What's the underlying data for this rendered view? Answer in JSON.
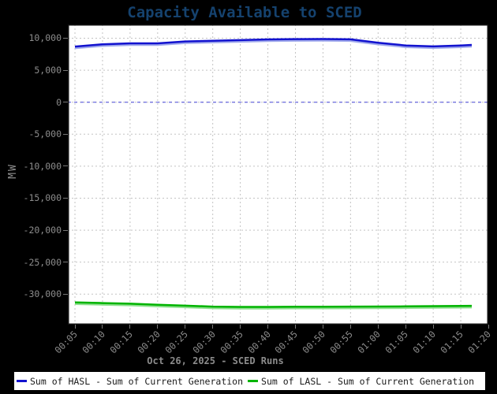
{
  "page": {
    "background": "#000000"
  },
  "title": {
    "text": "Capacity Available to SCED",
    "color": "#15426e"
  },
  "axes": {
    "ylabel": "MW",
    "xlabel": "Oct 26, 2025 - SCED Runs",
    "label_color": "#8c8c8c"
  },
  "legend": {
    "items": [
      {
        "label": "Sum of HASL - Sum of Current Generation",
        "color": "#1212cf"
      },
      {
        "label": "Sum of LASL - Sum of Current Generation",
        "color": "#00b400"
      }
    ]
  },
  "chart_data": {
    "type": "line",
    "title": "Capacity Available to SCED",
    "xlabel": "Oct 26, 2025 - SCED Runs",
    "ylabel": "MW",
    "grid": true,
    "legend_position": "bottom",
    "x": [
      "00:05",
      "00:10",
      "00:15",
      "00:20",
      "00:25",
      "00:30",
      "00:35",
      "00:40",
      "00:45",
      "00:50",
      "00:55",
      "01:00",
      "01:05",
      "01:10",
      "01:15",
      "01:17"
    ],
    "series": [
      {
        "name": "Sum of HASL - Sum of Current Generation",
        "color": "#1212cf",
        "shadow_color": "#9fa8ec",
        "values": [
          8700,
          9050,
          9200,
          9200,
          9500,
          9600,
          9700,
          9820,
          9870,
          9880,
          9830,
          9300,
          8870,
          8720,
          8870,
          8950
        ]
      },
      {
        "name": "Sum of LASL - Sum of Current Generation",
        "color": "#00b400",
        "shadow_color": "#8fe08f",
        "values": [
          -31300,
          -31400,
          -31500,
          -31650,
          -31800,
          -31950,
          -32000,
          -32000,
          -31980,
          -31960,
          -31950,
          -31940,
          -31910,
          -31880,
          -31850,
          -31830
        ]
      }
    ],
    "ylim": [
      -34770,
      12155
    ],
    "xlim_minutes": [
      3.71,
      80.0
    ],
    "yticks": {
      "values": [
        10000,
        5000,
        0,
        -5000,
        -10000,
        -15000,
        -20000,
        -25000,
        -30000
      ],
      "labels": [
        "10,000",
        "5,000",
        "0",
        "-5,000",
        "-10,000",
        "-15,000",
        "-20,000",
        "-25,000",
        "-30,000"
      ]
    },
    "xticks": {
      "minutes": [
        5,
        10,
        15,
        20,
        25,
        30,
        35,
        40,
        45,
        50,
        55,
        60,
        65,
        70,
        75,
        80
      ],
      "labels": [
        "00:05",
        "00:10",
        "00:15",
        "00:20",
        "00:25",
        "00:30",
        "00:35",
        "00:40",
        "00:45",
        "00:50",
        "00:55",
        "01:00",
        "01:05",
        "01:10",
        "01:15",
        "01:20"
      ]
    },
    "zero_line_color": "#4545d8"
  }
}
